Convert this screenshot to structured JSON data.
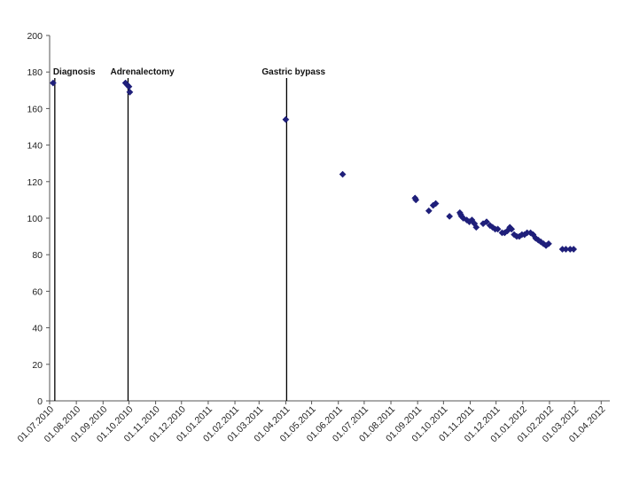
{
  "chart_data": {
    "type": "scatter",
    "title": "",
    "xlabel": "",
    "ylabel": "",
    "ylim": [
      0,
      200
    ],
    "yticks": [
      0,
      20,
      40,
      60,
      80,
      100,
      120,
      140,
      160,
      180,
      200
    ],
    "xticks": [
      "01.07.2010",
      "01.08.2010",
      "01.09.2010",
      "01.10.2010",
      "01.11.2010",
      "01.12.2010",
      "01.01.2011",
      "01.02.2011",
      "01.03.2011",
      "01.04.2011",
      "01.05.2011",
      "01.06.2011",
      "01.07.2011",
      "01.08.2011",
      "01.09.2011",
      "01.10.2011",
      "01.11.2011",
      "01.12.2011",
      "01.01.2012",
      "01.02.2012",
      "01.03.2012",
      "01.04.2012"
    ],
    "xlim": [
      "2010-07-01",
      "2012-04-11"
    ],
    "grid": false,
    "marker_color": "#1f1f7a",
    "events": [
      {
        "date": "2010-07-07",
        "label": "Diagnosis"
      },
      {
        "date": "2010-09-30",
        "label": "Adrenalectomy"
      },
      {
        "date": "2011-04-02",
        "label": "Gastric bypass"
      }
    ],
    "points": [
      {
        "x": "2010-07-05",
        "y": 174
      },
      {
        "x": "2010-09-27",
        "y": 174
      },
      {
        "x": "2010-09-29",
        "y": 173
      },
      {
        "x": "2010-10-01",
        "y": 172
      },
      {
        "x": "2010-10-02",
        "y": 169
      },
      {
        "x": "2011-04-01",
        "y": 154
      },
      {
        "x": "2011-06-06",
        "y": 124
      },
      {
        "x": "2011-08-29",
        "y": 111
      },
      {
        "x": "2011-08-30",
        "y": 110
      },
      {
        "x": "2011-09-14",
        "y": 104
      },
      {
        "x": "2011-09-19",
        "y": 107
      },
      {
        "x": "2011-09-22",
        "y": 108
      },
      {
        "x": "2011-10-08",
        "y": 101
      },
      {
        "x": "2011-10-20",
        "y": 103
      },
      {
        "x": "2011-10-21",
        "y": 102
      },
      {
        "x": "2011-10-22",
        "y": 101
      },
      {
        "x": "2011-10-24",
        "y": 100
      },
      {
        "x": "2011-10-28",
        "y": 99
      },
      {
        "x": "2011-10-31",
        "y": 98
      },
      {
        "x": "2011-11-03",
        "y": 99
      },
      {
        "x": "2011-11-06",
        "y": 97
      },
      {
        "x": "2011-11-08",
        "y": 95
      },
      {
        "x": "2011-11-16",
        "y": 97
      },
      {
        "x": "2011-11-20",
        "y": 98
      },
      {
        "x": "2011-11-24",
        "y": 96
      },
      {
        "x": "2011-11-27",
        "y": 95
      },
      {
        "x": "2011-11-30",
        "y": 94
      },
      {
        "x": "2011-12-03",
        "y": 94
      },
      {
        "x": "2011-12-08",
        "y": 92
      },
      {
        "x": "2011-12-11",
        "y": 92
      },
      {
        "x": "2011-12-14",
        "y": 93
      },
      {
        "x": "2011-12-17",
        "y": 95
      },
      {
        "x": "2011-12-19",
        "y": 94
      },
      {
        "x": "2011-12-22",
        "y": 91
      },
      {
        "x": "2011-12-25",
        "y": 90
      },
      {
        "x": "2011-12-28",
        "y": 90
      },
      {
        "x": "2011-12-31",
        "y": 91
      },
      {
        "x": "2012-01-03",
        "y": 91
      },
      {
        "x": "2012-01-06",
        "y": 92
      },
      {
        "x": "2012-01-10",
        "y": 92
      },
      {
        "x": "2012-01-13",
        "y": 91
      },
      {
        "x": "2012-01-16",
        "y": 89
      },
      {
        "x": "2012-01-19",
        "y": 88
      },
      {
        "x": "2012-01-22",
        "y": 87
      },
      {
        "x": "2012-01-25",
        "y": 86
      },
      {
        "x": "2012-01-28",
        "y": 85
      },
      {
        "x": "2012-01-31",
        "y": 86
      },
      {
        "x": "2012-02-16",
        "y": 83
      },
      {
        "x": "2012-02-20",
        "y": 83
      },
      {
        "x": "2012-02-25",
        "y": 83
      },
      {
        "x": "2012-02-29",
        "y": 83
      }
    ]
  }
}
